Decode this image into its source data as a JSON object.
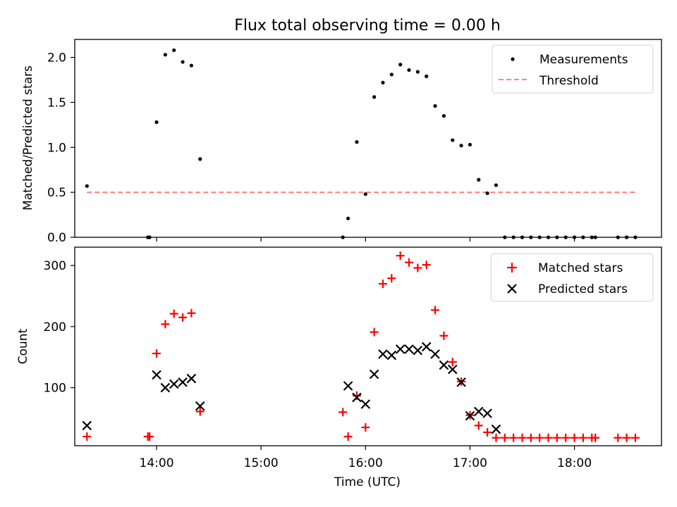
{
  "figure": {
    "title": "Flux total observing time = 0.00 h"
  },
  "chart_data": [
    {
      "type": "scatter",
      "ylabel": "Matched/Predicted stars",
      "xlim": [
        "13:13",
        "18:50"
      ],
      "ylim": [
        0,
        2.2
      ],
      "yticks": [
        0.0,
        0.5,
        1.0,
        1.5,
        2.0
      ],
      "ytick_labels": [
        "0.0",
        "0.5",
        "1.0",
        "1.5",
        "2.0"
      ],
      "grid": false,
      "legend_position": "top-right",
      "legend_labels": {
        "measurements": "Measurements",
        "threshold": "Threshold"
      },
      "threshold": {
        "value": 0.5,
        "x_start": "13:20",
        "x_end": "18:36",
        "color": "#ff7f7f"
      },
      "series": [
        {
          "name": "Measurements",
          "marker": "dot",
          "color": "#000000",
          "points": [
            [
              "13:20",
              0.57
            ],
            [
              "13:55",
              0.0
            ],
            [
              "13:56",
              0.0
            ],
            [
              "14:00",
              1.28
            ],
            [
              "14:05",
              2.03
            ],
            [
              "14:10",
              2.08
            ],
            [
              "14:15",
              1.95
            ],
            [
              "14:20",
              1.91
            ],
            [
              "14:25",
              0.87
            ],
            [
              "15:47",
              0.0
            ],
            [
              "15:50",
              0.21
            ],
            [
              "15:55",
              1.06
            ],
            [
              "16:00",
              0.48
            ],
            [
              "16:05",
              1.56
            ],
            [
              "16:10",
              1.72
            ],
            [
              "16:15",
              1.81
            ],
            [
              "16:20",
              1.92
            ],
            [
              "16:25",
              1.86
            ],
            [
              "16:30",
              1.84
            ],
            [
              "16:35",
              1.79
            ],
            [
              "16:40",
              1.46
            ],
            [
              "16:45",
              1.35
            ],
            [
              "16:50",
              1.08
            ],
            [
              "16:55",
              1.02
            ],
            [
              "17:00",
              1.03
            ],
            [
              "17:05",
              0.64
            ],
            [
              "17:10",
              0.49
            ],
            [
              "17:15",
              0.58
            ],
            [
              "17:20",
              0.0
            ],
            [
              "17:25",
              0.0
            ],
            [
              "17:30",
              0.0
            ],
            [
              "17:35",
              0.0
            ],
            [
              "17:40",
              0.0
            ],
            [
              "17:45",
              0.0
            ],
            [
              "17:50",
              0.0
            ],
            [
              "17:55",
              0.0
            ],
            [
              "18:00",
              0.0
            ],
            [
              "18:05",
              0.0
            ],
            [
              "18:10",
              0.0
            ],
            [
              "18:12",
              0.0
            ],
            [
              "18:25",
              0.0
            ],
            [
              "18:30",
              0.0
            ],
            [
              "18:35",
              0.0
            ]
          ]
        }
      ]
    },
    {
      "type": "scatter",
      "xlabel": "Time (UTC)",
      "ylabel": "Count",
      "xlim": [
        "13:13",
        "18:50"
      ],
      "ylim": [
        5,
        330
      ],
      "xticks": [
        "14:00",
        "15:00",
        "16:00",
        "17:00",
        "18:00"
      ],
      "xtick_labels": [
        "14:00",
        "15:00",
        "16:00",
        "17:00",
        "18:00"
      ],
      "yticks": [
        100,
        200,
        300
      ],
      "ytick_labels": [
        "100",
        "200",
        "300"
      ],
      "grid": false,
      "legend_position": "top-right",
      "series": [
        {
          "name": "Matched stars",
          "marker": "plus",
          "color": "#ff0000",
          "points": [
            [
              "13:20",
              20
            ],
            [
              "13:55",
              20
            ],
            [
              "13:56",
              20
            ],
            [
              "14:00",
              156
            ],
            [
              "14:05",
              204
            ],
            [
              "14:10",
              221
            ],
            [
              "14:15",
              215
            ],
            [
              "14:20",
              222
            ],
            [
              "14:25",
              61
            ],
            [
              "15:47",
              60
            ],
            [
              "15:50",
              20
            ],
            [
              "15:55",
              87
            ],
            [
              "16:00",
              35
            ],
            [
              "16:05",
              191
            ],
            [
              "16:10",
              270
            ],
            [
              "16:15",
              279
            ],
            [
              "16:20",
              316
            ],
            [
              "16:25",
              305
            ],
            [
              "16:30",
              296
            ],
            [
              "16:35",
              301
            ],
            [
              "16:40",
              227
            ],
            [
              "16:45",
              185
            ],
            [
              "16:50",
              142
            ],
            [
              "16:55",
              110
            ],
            [
              "17:00",
              55
            ],
            [
              "17:05",
              38
            ],
            [
              "17:10",
              27
            ],
            [
              "17:15",
              18
            ],
            [
              "17:20",
              18
            ],
            [
              "17:25",
              18
            ],
            [
              "17:30",
              18
            ],
            [
              "17:35",
              18
            ],
            [
              "17:40",
              18
            ],
            [
              "17:45",
              18
            ],
            [
              "17:50",
              18
            ],
            [
              "17:55",
              18
            ],
            [
              "18:00",
              18
            ],
            [
              "18:05",
              18
            ],
            [
              "18:10",
              18
            ],
            [
              "18:12",
              18
            ],
            [
              "18:25",
              18
            ],
            [
              "18:30",
              18
            ],
            [
              "18:35",
              18
            ]
          ]
        },
        {
          "name": "Predicted stars",
          "marker": "x",
          "color": "#000000",
          "points": [
            [
              "13:20",
              38
            ],
            [
              "14:00",
              121
            ],
            [
              "14:05",
              100
            ],
            [
              "14:10",
              106
            ],
            [
              "14:15",
              109
            ],
            [
              "14:20",
              115
            ],
            [
              "14:25",
              70
            ],
            [
              "15:50",
              103
            ],
            [
              "15:55",
              84
            ],
            [
              "16:00",
              73
            ],
            [
              "16:05",
              122
            ],
            [
              "16:10",
              155
            ],
            [
              "16:15",
              153
            ],
            [
              "16:20",
              163
            ],
            [
              "16:25",
              163
            ],
            [
              "16:30",
              161
            ],
            [
              "16:35",
              167
            ],
            [
              "16:40",
              155
            ],
            [
              "16:45",
              137
            ],
            [
              "16:50",
              130
            ],
            [
              "16:55",
              109
            ],
            [
              "17:00",
              54
            ],
            [
              "17:05",
              61
            ],
            [
              "17:10",
              58
            ],
            [
              "17:15",
              32
            ]
          ]
        }
      ]
    }
  ]
}
